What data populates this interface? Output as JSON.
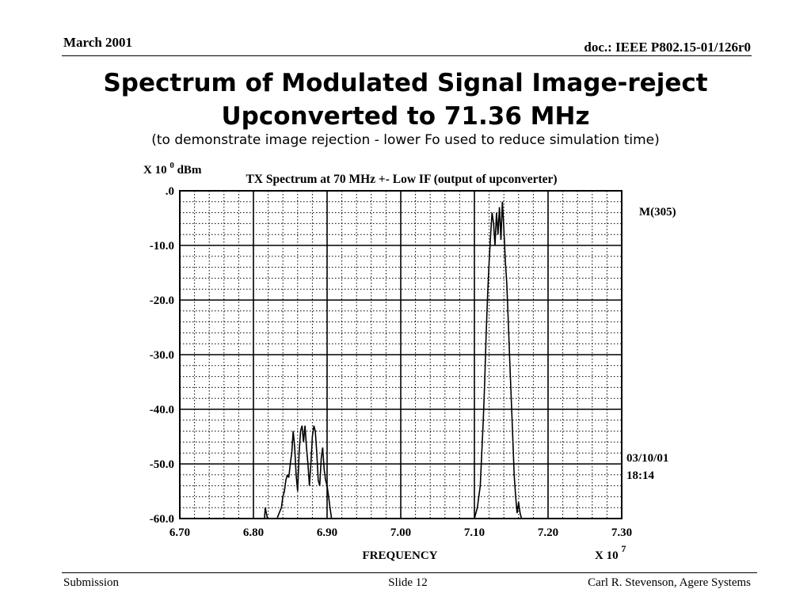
{
  "header": {
    "date": "March 2001",
    "doc": "doc.: IEEE P802.15-01/126r0"
  },
  "slide": {
    "title_line1": "Spectrum of Modulated Signal Image-reject",
    "title_line2": "Upconverted to 71.36 MHz",
    "subtitle": "(to demonstrate image rejection - lower Fo used to reduce simulation time)"
  },
  "footer": {
    "left": "Submission",
    "center": "Slide 12",
    "right": "Carl R. Stevenson, Agere Systems"
  },
  "chart_data": {
    "type": "line",
    "title": "TX Spectrum at 70 MHz +- Low IF (output of upconverter)",
    "ylabel": "X 10^0 dBm",
    "ylabel_base": "X 10",
    "ylabel_exp": "0",
    "ylabel_unit": "dBm",
    "xlabel": "FREQUENCY",
    "x_multiplier_base": "X 10",
    "x_multiplier_exp": "7",
    "xlim": [
      6.7,
      7.3
    ],
    "ylim": [
      -60,
      0
    ],
    "x_ticks": [
      "6.70",
      "6.80",
      "6.90",
      "7.00",
      "7.10",
      "7.20",
      "7.30"
    ],
    "y_ticks": [
      ".0",
      "-10.0",
      "-20.0",
      "-30.0",
      "-40.0",
      "-50.0",
      "-60.0"
    ],
    "grid": true,
    "marker_label": "M(305)",
    "timestamp_date": "03/10/01",
    "timestamp_time": "18:14",
    "series": [
      {
        "color": "#000000",
        "x": [
          6.815,
          6.816,
          6.819,
          6.822,
          6.822,
          6.832,
          6.835,
          6.838,
          6.84,
          6.842,
          6.844,
          6.846,
          6.848,
          6.85,
          6.852,
          6.854,
          6.856,
          6.858,
          6.86,
          6.862,
          6.864,
          6.866,
          6.868,
          6.87,
          6.872,
          6.874,
          6.876,
          6.878,
          6.88,
          6.882,
          6.884,
          6.886,
          6.888,
          6.89,
          6.892,
          6.894,
          6.896,
          6.898,
          6.9,
          6.902,
          6.904,
          6.906,
          6.907,
          6.912,
          6.92,
          7.0,
          7.08,
          7.098,
          7.1,
          7.104,
          7.108,
          7.11,
          7.112,
          7.114,
          7.116,
          7.118,
          7.12,
          7.122,
          7.124,
          7.126,
          7.128,
          7.13,
          7.132,
          7.134,
          7.136,
          7.138,
          7.14,
          7.142,
          7.144,
          7.146,
          7.148,
          7.15,
          7.152,
          7.154,
          7.156,
          7.158,
          7.16,
          7.162,
          7.164,
          7.166,
          7.168,
          7.172,
          7.18
        ],
        "y": [
          -60,
          -58,
          -60,
          -60,
          -60,
          -60,
          -59,
          -58,
          -56,
          -55,
          -53,
          -52,
          -52.5,
          -50,
          -48,
          -44,
          -47,
          -52,
          -55,
          -48,
          -44,
          -43,
          -46,
          -43,
          -47,
          -50,
          -54,
          -50,
          -45,
          -43,
          -44,
          -48,
          -53,
          -54,
          -49,
          -47,
          -51,
          -53,
          -54,
          -56,
          -58,
          -60,
          -60,
          -60,
          -60,
          -60,
          -60,
          -60,
          -60,
          -58,
          -54,
          -48,
          -42,
          -35,
          -26,
          -19,
          -13,
          -8,
          -4,
          -6,
          -10,
          -4,
          -8,
          -3,
          -9,
          -2,
          -7,
          -13,
          -17,
          -24,
          -31,
          -38,
          -45,
          -52,
          -56,
          -59,
          -57,
          -59,
          -60,
          -60,
          -60,
          -60,
          -60
        ]
      }
    ]
  }
}
